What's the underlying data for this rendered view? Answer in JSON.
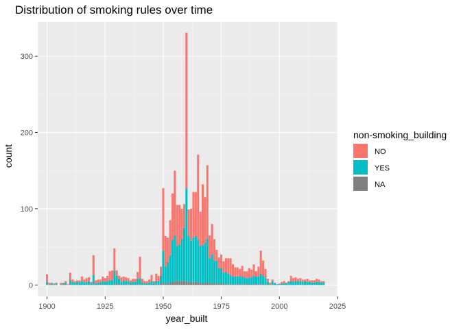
{
  "chart_data": {
    "type": "bar",
    "stacked": true,
    "title": "Distribution of smoking rules over time",
    "xlabel": "year_built",
    "ylabel": "count",
    "xlim": [
      1896,
      2025
    ],
    "ylim": [
      -15,
      345
    ],
    "x_ticks": [
      1900,
      1925,
      1950,
      1975,
      2000,
      2025
    ],
    "y_ticks": [
      0,
      100,
      200,
      300
    ],
    "grid": true,
    "legend": {
      "title": "non-smoking_building",
      "position": "right",
      "entries": [
        {
          "label": "NO",
          "color": "#F8766D"
        },
        {
          "label": "YES",
          "color": "#00BFC4"
        },
        {
          "label": "NA",
          "color": "#808080"
        }
      ]
    },
    "colors": {
      "panel": "#EBEBEB",
      "grid_major": "#FFFFFF",
      "grid_minor": "#F5F5F5",
      "axis_text": "#4D4D4D",
      "title": "#000000"
    },
    "x": [
      1900,
      1901,
      1902,
      1903,
      1904,
      1905,
      1906,
      1907,
      1908,
      1909,
      1910,
      1911,
      1912,
      1913,
      1914,
      1915,
      1916,
      1917,
      1918,
      1919,
      1920,
      1921,
      1922,
      1923,
      1924,
      1925,
      1926,
      1927,
      1928,
      1929,
      1930,
      1931,
      1932,
      1933,
      1934,
      1935,
      1936,
      1937,
      1938,
      1939,
      1940,
      1941,
      1942,
      1943,
      1944,
      1945,
      1946,
      1947,
      1948,
      1949,
      1950,
      1951,
      1952,
      1953,
      1954,
      1955,
      1956,
      1957,
      1958,
      1959,
      1960,
      1961,
      1962,
      1963,
      1964,
      1965,
      1966,
      1967,
      1968,
      1969,
      1970,
      1971,
      1972,
      1973,
      1974,
      1975,
      1976,
      1977,
      1978,
      1979,
      1980,
      1981,
      1982,
      1983,
      1984,
      1985,
      1986,
      1987,
      1988,
      1989,
      1990,
      1991,
      1992,
      1993,
      1994,
      1995,
      1996,
      1997,
      1998,
      1999,
      2000,
      2001,
      2002,
      2003,
      2004,
      2005,
      2006,
      2007,
      2008,
      2009,
      2010,
      2011,
      2012,
      2013,
      2014,
      2015,
      2016,
      2017,
      2018,
      2019
    ],
    "series": [
      {
        "name": "NA",
        "values": [
          1,
          0,
          1,
          0,
          1,
          0,
          0,
          1,
          1,
          0,
          1,
          0,
          0,
          1,
          0,
          0,
          0,
          0,
          1,
          0,
          1,
          0,
          0,
          0,
          1,
          0,
          0,
          0,
          0,
          1,
          2,
          1,
          0,
          1,
          0,
          1,
          0,
          0,
          0,
          1,
          1,
          0,
          0,
          0,
          0,
          0,
          0,
          1,
          0,
          2,
          3,
          2,
          2,
          3,
          4,
          5,
          6,
          5,
          5,
          5,
          5,
          4,
          3,
          4,
          4,
          4,
          3,
          2,
          3,
          3,
          3,
          2,
          2,
          2,
          2,
          2,
          2,
          1,
          1,
          1,
          1,
          1,
          1,
          1,
          1,
          1,
          1,
          1,
          0,
          1,
          1,
          1,
          1,
          1,
          1,
          0,
          0,
          1,
          0,
          0,
          0,
          0,
          0,
          0,
          0,
          0,
          0,
          0,
          0,
          0,
          0,
          0,
          0,
          0,
          0,
          0,
          0,
          0,
          0,
          0
        ]
      },
      {
        "name": "YES",
        "values": [
          3,
          1,
          1,
          1,
          1,
          0,
          1,
          1,
          2,
          0,
          5,
          4,
          3,
          3,
          4,
          5,
          3,
          4,
          4,
          2,
          12,
          2,
          3,
          3,
          4,
          4,
          5,
          6,
          6,
          18,
          10,
          7,
          4,
          5,
          5,
          4,
          3,
          4,
          4,
          7,
          8,
          3,
          2,
          2,
          3,
          5,
          2,
          4,
          5,
          10,
          42,
          22,
          28,
          35,
          55,
          60,
          45,
          48,
          55,
          70,
          122,
          60,
          55,
          58,
          60,
          55,
          48,
          50,
          52,
          58,
          32,
          38,
          30,
          30,
          20,
          20,
          14,
          16,
          14,
          12,
          10,
          10,
          10,
          10,
          10,
          9,
          8,
          9,
          10,
          11,
          10,
          10,
          14,
          11,
          8,
          4,
          1,
          4,
          2,
          1,
          1,
          2,
          2,
          2,
          4,
          5,
          4,
          5,
          5,
          5,
          4,
          5,
          4,
          4,
          3,
          3,
          4,
          4,
          3,
          3
        ]
      },
      {
        "name": "NO",
        "values": [
          10,
          2,
          1,
          1,
          1,
          0,
          2,
          1,
          2,
          1,
          10,
          3,
          2,
          2,
          2,
          6,
          4,
          5,
          5,
          2,
          26,
          4,
          4,
          4,
          6,
          5,
          7,
          12,
          13,
          29,
          7,
          4,
          6,
          5,
          5,
          4,
          3,
          4,
          4,
          9,
          28,
          5,
          3,
          3,
          4,
          8,
          3,
          10,
          7,
          12,
          82,
          40,
          32,
          47,
          61,
          85,
          54,
          52,
          40,
          31,
          204,
          35,
          42,
          60,
          58,
          112,
          45,
          80,
          60,
          96,
          30,
          40,
          28,
          14,
          14,
          18,
          15,
          18,
          20,
          22,
          16,
          12,
          12,
          10,
          14,
          8,
          9,
          12,
          10,
          15,
          7,
          13,
          30,
          20,
          12,
          4,
          2,
          2,
          1,
          0,
          1,
          2,
          3,
          1,
          1,
          7,
          5,
          5,
          3,
          4,
          3,
          2,
          4,
          2,
          3,
          3,
          4,
          3,
          2,
          2
        ]
      }
    ]
  }
}
